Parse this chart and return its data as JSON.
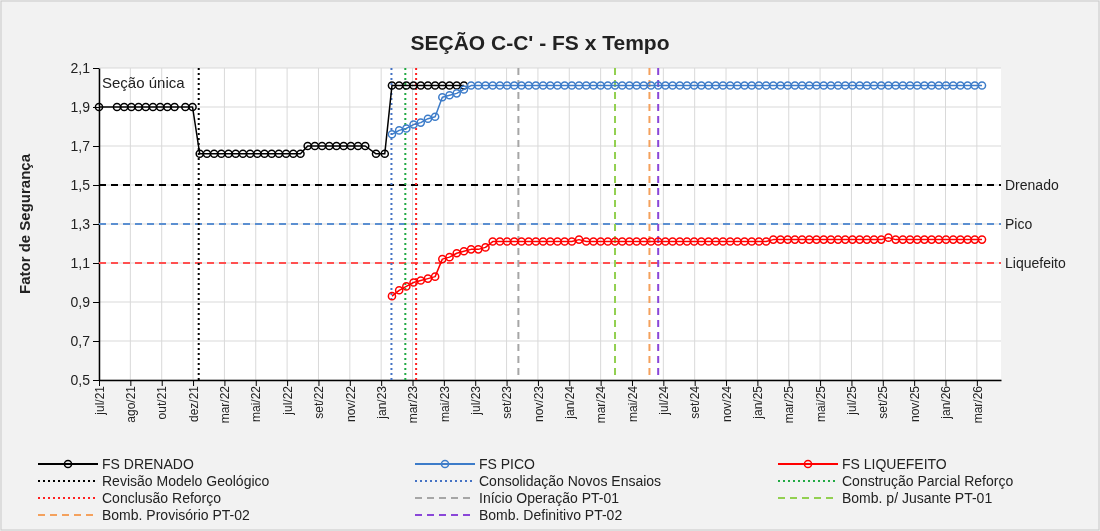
{
  "chart_data": {
    "type": "line",
    "title": "SEÇÃO C-C' - FS x Tempo",
    "ylabel": "Fator de Segurança",
    "xlim": [
      "2021-07-01",
      "2026-04-21"
    ],
    "ylim": [
      0.5,
      2.1
    ],
    "xticks": [
      {
        "value": "2021-07-01",
        "label": "jul/21"
      },
      {
        "value": "2021-08-31",
        "label": "ago/21"
      },
      {
        "value": "2021-10-31",
        "label": "out/21"
      },
      {
        "value": "2021-12-31",
        "label": "dez/21"
      },
      {
        "value": "2022-03-02",
        "label": "mar/22"
      },
      {
        "value": "2022-05-02",
        "label": "mai/22"
      },
      {
        "value": "2022-07-02",
        "label": "jul/22"
      },
      {
        "value": "2022-09-01",
        "label": "set/22"
      },
      {
        "value": "2022-11-01",
        "label": "nov/22"
      },
      {
        "value": "2023-01-01",
        "label": "jan/23"
      },
      {
        "value": "2023-03-03",
        "label": "mar/23"
      },
      {
        "value": "2023-05-03",
        "label": "mai/23"
      },
      {
        "value": "2023-07-03",
        "label": "jul/23"
      },
      {
        "value": "2023-09-02",
        "label": "set/23"
      },
      {
        "value": "2023-11-02",
        "label": "nov/23"
      },
      {
        "value": "2024-01-02",
        "label": "jan/24"
      },
      {
        "value": "2024-03-03",
        "label": "mar/24"
      },
      {
        "value": "2024-05-03",
        "label": "mai/24"
      },
      {
        "value": "2024-07-03",
        "label": "jul/24"
      },
      {
        "value": "2024-09-02",
        "label": "set/24"
      },
      {
        "value": "2024-11-02",
        "label": "nov/24"
      },
      {
        "value": "2025-01-02",
        "label": "jan/25"
      },
      {
        "value": "2025-03-04",
        "label": "mar/25"
      },
      {
        "value": "2025-05-04",
        "label": "mai/25"
      },
      {
        "value": "2025-07-04",
        "label": "jul/25"
      },
      {
        "value": "2025-09-03",
        "label": "set/25"
      },
      {
        "value": "2025-11-03",
        "label": "nov/25"
      },
      {
        "value": "2026-01-03",
        "label": "jan/26"
      },
      {
        "value": "2026-03-05",
        "label": "mar/26"
      }
    ],
    "yticks": [
      {
        "value": 0.5,
        "label": "0,5"
      },
      {
        "value": 0.7,
        "label": "0,7"
      },
      {
        "value": 0.9,
        "label": "0,9"
      },
      {
        "value": 1.1,
        "label": "1,1"
      },
      {
        "value": 1.3,
        "label": "1,3"
      },
      {
        "value": 1.5,
        "label": "1,5"
      },
      {
        "value": 1.7,
        "label": "1,7"
      },
      {
        "value": 1.9,
        "label": "1,9"
      },
      {
        "value": 2.1,
        "label": "2,1"
      }
    ],
    "grid": true,
    "legend": "bottom",
    "marker": "circle",
    "line_style": "solid",
    "annotations": [
      "Seção única"
    ],
    "series": [
      {
        "name": "FS DRENADO",
        "color": "#000000",
        "x": [
          "2021-07-01",
          "2021-08-05",
          "2021-08-19",
          "2021-09-02",
          "2021-09-16",
          "2021-09-30",
          "2021-10-14",
          "2021-10-28",
          "2021-11-11",
          "2021-11-25",
          "2021-12-16",
          "2021-12-30",
          "2022-01-13",
          "2022-01-27",
          "2022-02-10",
          "2022-02-24",
          "2022-03-10",
          "2022-03-24",
          "2022-04-07",
          "2022-04-21",
          "2022-05-05",
          "2022-05-19",
          "2022-06-02",
          "2022-06-16",
          "2022-06-30",
          "2022-07-14",
          "2022-07-28",
          "2022-08-11",
          "2022-08-25",
          "2022-09-08",
          "2022-09-22",
          "2022-10-06",
          "2022-10-20",
          "2022-11-03",
          "2022-11-17",
          "2022-12-01",
          "2022-12-22",
          "2023-01-08",
          "2023-01-22",
          "2023-02-05",
          "2023-02-19",
          "2023-03-05",
          "2023-03-19",
          "2023-04-02",
          "2023-04-16",
          "2023-04-30",
          "2023-05-14",
          "2023-05-28",
          "2023-06-11"
        ],
        "values": [
          1.9,
          1.9,
          1.9,
          1.9,
          1.9,
          1.9,
          1.9,
          1.9,
          1.9,
          1.9,
          1.9,
          1.9,
          1.66,
          1.66,
          1.66,
          1.66,
          1.66,
          1.66,
          1.66,
          1.66,
          1.66,
          1.66,
          1.66,
          1.66,
          1.66,
          1.66,
          1.66,
          1.7,
          1.7,
          1.7,
          1.7,
          1.7,
          1.7,
          1.7,
          1.7,
          1.7,
          1.66,
          1.66,
          2.01,
          2.01,
          2.01,
          2.01,
          2.01,
          2.01,
          2.01,
          2.01,
          2.01,
          2.01,
          2.01
        ]
      },
      {
        "name": "FS PICO",
        "color": "#3d7cc9",
        "x": [
          "2023-01-22",
          "2023-02-05",
          "2023-02-19",
          "2023-03-05",
          "2023-03-19",
          "2023-04-02",
          "2023-04-16",
          "2023-04-30",
          "2023-05-14",
          "2023-05-28",
          "2023-06-11",
          "2023-06-25",
          "2023-07-09",
          "2023-07-23",
          "2023-08-06",
          "2023-08-20",
          "2023-09-03",
          "2023-09-17",
          "2023-10-01",
          "2023-10-15",
          "2023-10-29",
          "2023-11-12",
          "2023-11-26",
          "2023-12-10",
          "2023-12-24",
          "2024-01-07",
          "2024-01-21",
          "2024-02-04",
          "2024-02-18",
          "2024-03-03",
          "2024-03-17",
          "2024-03-31",
          "2024-04-14",
          "2024-04-28",
          "2024-05-12",
          "2024-05-26",
          "2024-06-09",
          "2024-06-23",
          "2024-07-07",
          "2024-07-21",
          "2024-08-04",
          "2024-08-18",
          "2024-09-01",
          "2024-09-15",
          "2024-09-29",
          "2024-10-13",
          "2024-10-27",
          "2024-11-10",
          "2024-11-24",
          "2024-12-08",
          "2024-12-22",
          "2025-01-05",
          "2025-01-19",
          "2025-02-02",
          "2025-02-16",
          "2025-03-02",
          "2025-03-16",
          "2025-03-30",
          "2025-04-13",
          "2025-04-27",
          "2025-05-11",
          "2025-05-25",
          "2025-06-08",
          "2025-06-22",
          "2025-07-06",
          "2025-07-20",
          "2025-08-03",
          "2025-08-17",
          "2025-08-31",
          "2025-09-14",
          "2025-09-28",
          "2025-10-12",
          "2025-10-26",
          "2025-11-09",
          "2025-11-23",
          "2025-12-07",
          "2025-12-21",
          "2026-01-04",
          "2026-01-18",
          "2026-02-01",
          "2026-02-15",
          "2026-03-01",
          "2026-03-15"
        ],
        "values": [
          1.76,
          1.78,
          1.79,
          1.81,
          1.82,
          1.84,
          1.85,
          1.95,
          1.96,
          1.97,
          1.99,
          2.01,
          2.01,
          2.01,
          2.01,
          2.01,
          2.01,
          2.01,
          2.01,
          2.01,
          2.01,
          2.01,
          2.01,
          2.01,
          2.01,
          2.01,
          2.01,
          2.01,
          2.01,
          2.01,
          2.01,
          2.01,
          2.01,
          2.01,
          2.01,
          2.01,
          2.01,
          2.01,
          2.01,
          2.01,
          2.01,
          2.01,
          2.01,
          2.01,
          2.01,
          2.01,
          2.01,
          2.01,
          2.01,
          2.01,
          2.01,
          2.01,
          2.01,
          2.01,
          2.01,
          2.01,
          2.01,
          2.01,
          2.01,
          2.01,
          2.01,
          2.01,
          2.01,
          2.01,
          2.01,
          2.01,
          2.01,
          2.01,
          2.01,
          2.01,
          2.01,
          2.01,
          2.01,
          2.01,
          2.01,
          2.01,
          2.01,
          2.01,
          2.01,
          2.01,
          2.01,
          2.01,
          2.01
        ]
      },
      {
        "name": "FS LIQUEFEITO",
        "color": "#ff0000",
        "x": [
          "2023-01-22",
          "2023-02-05",
          "2023-02-19",
          "2023-03-05",
          "2023-03-19",
          "2023-04-02",
          "2023-04-16",
          "2023-04-30",
          "2023-05-14",
          "2023-05-28",
          "2023-06-11",
          "2023-06-25",
          "2023-07-09",
          "2023-07-23",
          "2023-08-06",
          "2023-08-20",
          "2023-09-03",
          "2023-09-17",
          "2023-10-01",
          "2023-10-15",
          "2023-10-29",
          "2023-11-12",
          "2023-11-26",
          "2023-12-10",
          "2023-12-24",
          "2024-01-07",
          "2024-01-21",
          "2024-02-04",
          "2024-02-18",
          "2024-03-03",
          "2024-03-17",
          "2024-03-31",
          "2024-04-14",
          "2024-04-28",
          "2024-05-12",
          "2024-05-26",
          "2024-06-09",
          "2024-06-23",
          "2024-07-07",
          "2024-07-21",
          "2024-08-04",
          "2024-08-18",
          "2024-09-01",
          "2024-09-15",
          "2024-09-29",
          "2024-10-13",
          "2024-10-27",
          "2024-11-10",
          "2024-11-24",
          "2024-12-08",
          "2024-12-22",
          "2025-01-05",
          "2025-01-19",
          "2025-02-02",
          "2025-02-16",
          "2025-03-02",
          "2025-03-16",
          "2025-03-30",
          "2025-04-13",
          "2025-04-27",
          "2025-05-11",
          "2025-05-25",
          "2025-06-08",
          "2025-06-22",
          "2025-07-06",
          "2025-07-20",
          "2025-08-03",
          "2025-08-17",
          "2025-08-31",
          "2025-09-14",
          "2025-09-28",
          "2025-10-12",
          "2025-10-26",
          "2025-11-09",
          "2025-11-23",
          "2025-12-07",
          "2025-12-21",
          "2026-01-04",
          "2026-01-18",
          "2026-02-01",
          "2026-02-15",
          "2026-03-01",
          "2026-03-15"
        ],
        "values": [
          0.93,
          0.96,
          0.98,
          1.0,
          1.01,
          1.02,
          1.03,
          1.12,
          1.13,
          1.15,
          1.16,
          1.17,
          1.17,
          1.18,
          1.21,
          1.21,
          1.21,
          1.21,
          1.21,
          1.21,
          1.21,
          1.21,
          1.21,
          1.21,
          1.21,
          1.21,
          1.22,
          1.21,
          1.21,
          1.21,
          1.21,
          1.21,
          1.21,
          1.21,
          1.21,
          1.21,
          1.21,
          1.21,
          1.21,
          1.21,
          1.21,
          1.21,
          1.21,
          1.21,
          1.21,
          1.21,
          1.21,
          1.21,
          1.21,
          1.21,
          1.21,
          1.21,
          1.21,
          1.22,
          1.22,
          1.22,
          1.22,
          1.22,
          1.22,
          1.22,
          1.22,
          1.22,
          1.22,
          1.22,
          1.22,
          1.22,
          1.22,
          1.22,
          1.22,
          1.23,
          1.22,
          1.22,
          1.22,
          1.22,
          1.22,
          1.22,
          1.22,
          1.22,
          1.22,
          1.22,
          1.22,
          1.22,
          1.22
        ]
      }
    ],
    "ref_lines": [
      {
        "axis": "y",
        "value": 1.5,
        "label": "Drenado",
        "color": "#000000",
        "line_style": "dashed"
      },
      {
        "axis": "y",
        "value": 1.3,
        "label": "Pico",
        "color": "#5b8fd1",
        "line_style": "dashed"
      },
      {
        "axis": "y",
        "value": 1.1,
        "label": "Liquefeito",
        "color": "#ff5050",
        "line_style": "dashed"
      },
      {
        "axis": "x",
        "value": "2022-01-11",
        "label": "Revisão Modelo Geológico",
        "color": "#000000",
        "line_style": "dotted"
      },
      {
        "axis": "x",
        "value": "2023-01-21",
        "label": "Consolidação Novos Ensaios",
        "color": "#4472c4",
        "line_style": "dotted"
      },
      {
        "axis": "x",
        "value": "2023-02-17",
        "label": "Construção Parcial Reforço",
        "color": "#22aa44",
        "line_style": "dotted"
      },
      {
        "axis": "x",
        "value": "2023-03-10",
        "label": "Conclusão Reforço",
        "color": "#ff2020",
        "line_style": "dotted"
      },
      {
        "axis": "x",
        "value": "2023-09-25",
        "label": "Início Operação PT-01",
        "color": "#a6a6a6",
        "line_style": "dashed"
      },
      {
        "axis": "x",
        "value": "2024-03-31",
        "label": "Bomb. p/ Jusante PT-01",
        "color": "#92d050",
        "line_style": "dashed"
      },
      {
        "axis": "x",
        "value": "2024-06-06",
        "label": "Bomb. Provisório PT-02",
        "color": "#f4a15d",
        "line_style": "dashed"
      },
      {
        "axis": "x",
        "value": "2024-06-23",
        "label": "Bomb. Definitivo PT-02",
        "color": "#8a46d8",
        "line_style": "dashed"
      }
    ]
  }
}
